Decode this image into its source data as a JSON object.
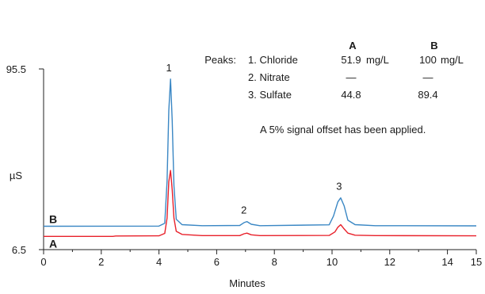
{
  "chart_data": {
    "type": "line",
    "xlabel": "Minutes",
    "ylabel": "µS",
    "xlim": [
      0,
      15
    ],
    "ylim": [
      6.5,
      95.5
    ],
    "x_ticks": [
      0,
      2,
      4,
      6,
      8,
      10,
      12,
      14,
      15
    ],
    "y_tick_labels": [
      "95.5",
      "6.5"
    ],
    "grid": false,
    "series": [
      {
        "name": "A",
        "color": "#e8202a",
        "baseline": 13.0,
        "points": [
          [
            0,
            13.0
          ],
          [
            2.4,
            13.0
          ],
          [
            2.5,
            13.2
          ],
          [
            4.0,
            13.3
          ],
          [
            4.2,
            14.5
          ],
          [
            4.28,
            22
          ],
          [
            4.34,
            40
          ],
          [
            4.4,
            45.5
          ],
          [
            4.46,
            36
          ],
          [
            4.52,
            22
          ],
          [
            4.6,
            15.5
          ],
          [
            4.8,
            14.0
          ],
          [
            5.5,
            13.4
          ],
          [
            6.8,
            13.4
          ],
          [
            6.95,
            14.3
          ],
          [
            7.05,
            14.6
          ],
          [
            7.2,
            13.8
          ],
          [
            7.5,
            13.4
          ],
          [
            9.9,
            13.5
          ],
          [
            10.1,
            15.2
          ],
          [
            10.2,
            17.5
          ],
          [
            10.3,
            18.8
          ],
          [
            10.4,
            17.0
          ],
          [
            10.55,
            14.6
          ],
          [
            10.8,
            13.6
          ],
          [
            11.5,
            13.4
          ],
          [
            15,
            13.3
          ]
        ]
      },
      {
        "name": "B",
        "color": "#3a87c4",
        "baseline": 18.0,
        "points": [
          [
            0,
            18.0
          ],
          [
            4.0,
            18.1
          ],
          [
            4.2,
            19.5
          ],
          [
            4.28,
            40
          ],
          [
            4.34,
            75
          ],
          [
            4.4,
            90.5
          ],
          [
            4.46,
            70
          ],
          [
            4.52,
            38
          ],
          [
            4.6,
            21.5
          ],
          [
            4.8,
            18.8
          ],
          [
            5.5,
            18.3
          ],
          [
            6.8,
            18.4
          ],
          [
            6.95,
            19.8
          ],
          [
            7.05,
            20.3
          ],
          [
            7.2,
            19.0
          ],
          [
            7.5,
            18.3
          ],
          [
            9.9,
            18.7
          ],
          [
            10.05,
            23
          ],
          [
            10.2,
            30
          ],
          [
            10.3,
            32.0
          ],
          [
            10.42,
            28
          ],
          [
            10.55,
            21.0
          ],
          [
            10.8,
            18.8
          ],
          [
            11.5,
            18.3
          ],
          [
            15,
            18.2
          ]
        ]
      }
    ],
    "peak_labels": [
      {
        "label": "1",
        "x": 4.4,
        "y": 90.5
      },
      {
        "label": "2",
        "x": 7.0,
        "y": 20.3
      },
      {
        "label": "3",
        "x": 10.3,
        "y": 32.0
      }
    ],
    "trace_labels": [
      {
        "label": "B",
        "series": "B"
      },
      {
        "label": "A",
        "series": "A"
      }
    ],
    "peaks_table": {
      "title": "Peaks:",
      "col_headers": [
        "A",
        "B"
      ],
      "rows": [
        {
          "name": "1. Chloride",
          "a": "51.9",
          "unit": "mg/L",
          "b": "100",
          "b_unit": "mg/L"
        },
        {
          "name": "2. Nitrate",
          "a": "—",
          "unit": "",
          "b": "—",
          "b_unit": ""
        },
        {
          "name": "3. Sulfate",
          "a": "44.8",
          "unit": "",
          "b": "89.4",
          "b_unit": ""
        }
      ]
    },
    "note": "A 5% signal offset has been applied."
  }
}
